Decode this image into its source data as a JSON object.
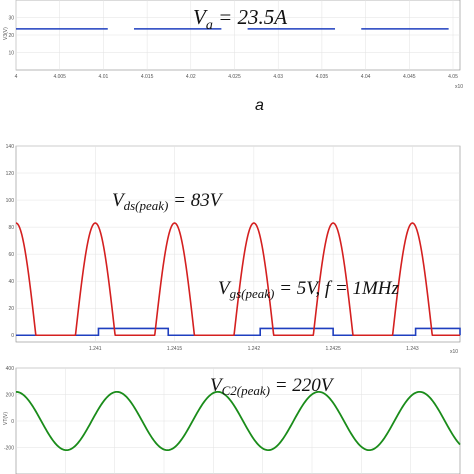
{
  "caption": "a",
  "chart_data": [
    {
      "type": "line",
      "ylabel": "V3(V)",
      "annotation": "V",
      "annotation_sub": "a",
      "annotation_rest": " = 23.5A",
      "exponent": "x10",
      "xlim": [
        4.0,
        4.0508
      ],
      "ylim": [
        0,
        40
      ],
      "x_ticks": [
        "4",
        "4.005",
        "4.01",
        "4.015",
        "4.02",
        "4.025",
        "4.03",
        "4.035",
        "4.04",
        "4.045",
        "4.05"
      ],
      "y_ticks": [
        "30",
        "20",
        "10"
      ],
      "series": [
        {
          "color": "#1f3fbf",
          "segments": [
            [
              4.0,
              4.0105,
              23.5
            ],
            [
              4.0135,
              4.0235,
              23.5
            ],
            [
              4.0265,
              4.0365,
              23.5
            ],
            [
              4.0395,
              4.0495,
              23.5
            ]
          ]
        }
      ]
    },
    {
      "type": "line",
      "ylabel": "",
      "annotation_vds": {
        "main": "V",
        "sub": "ds(peak)",
        "rest": " = 83V"
      },
      "annotation_vgs": {
        "main": "V",
        "sub": "gs(peak)",
        "rest": " = 5V, f = 1MHz"
      },
      "exponent": "x10",
      "xlim": [
        1.2405,
        1.2433
      ],
      "ylim": [
        -5,
        140
      ],
      "x_ticks": [
        "1.241",
        "1.2415",
        "1.242",
        "1.2425",
        "1.243"
      ],
      "x_tick_values": [
        1.241,
        1.2415,
        1.242,
        1.2425,
        1.243
      ],
      "y_ticks": [
        "140",
        "120",
        "100",
        "80",
        "60",
        "40",
        "20",
        "0"
      ],
      "y_tick_values": [
        140,
        120,
        100,
        80,
        60,
        40,
        20,
        0
      ],
      "vds": {
        "color": "#d42020",
        "peak": 83,
        "period": 0.0005,
        "on_width": 0.00025,
        "first_peak": 1.2405
      },
      "vgs": {
        "color": "#1f3fbf",
        "high": 5,
        "low": 0,
        "on_intervals": [
          [
            1.24102,
            1.24146
          ],
          [
            1.24204,
            1.2425
          ],
          [
            1.24302,
            1.2433
          ]
        ]
      }
    },
    {
      "type": "line",
      "ylabel": "VT(V)",
      "annotation": {
        "main": "V",
        "sub": "C2(peak)",
        "rest": " = 220V"
      },
      "xlim": [
        0,
        6.2
      ],
      "ylim": [
        -400,
        400
      ],
      "y_ticks": [
        "400",
        "200",
        "0",
        "-200"
      ],
      "y_tick_values": [
        400,
        200,
        0,
        -200
      ],
      "series": [
        {
          "color": "#1a8c1a",
          "amplitude": 220,
          "cycles": 4.4,
          "phase": 0.25
        }
      ]
    }
  ]
}
